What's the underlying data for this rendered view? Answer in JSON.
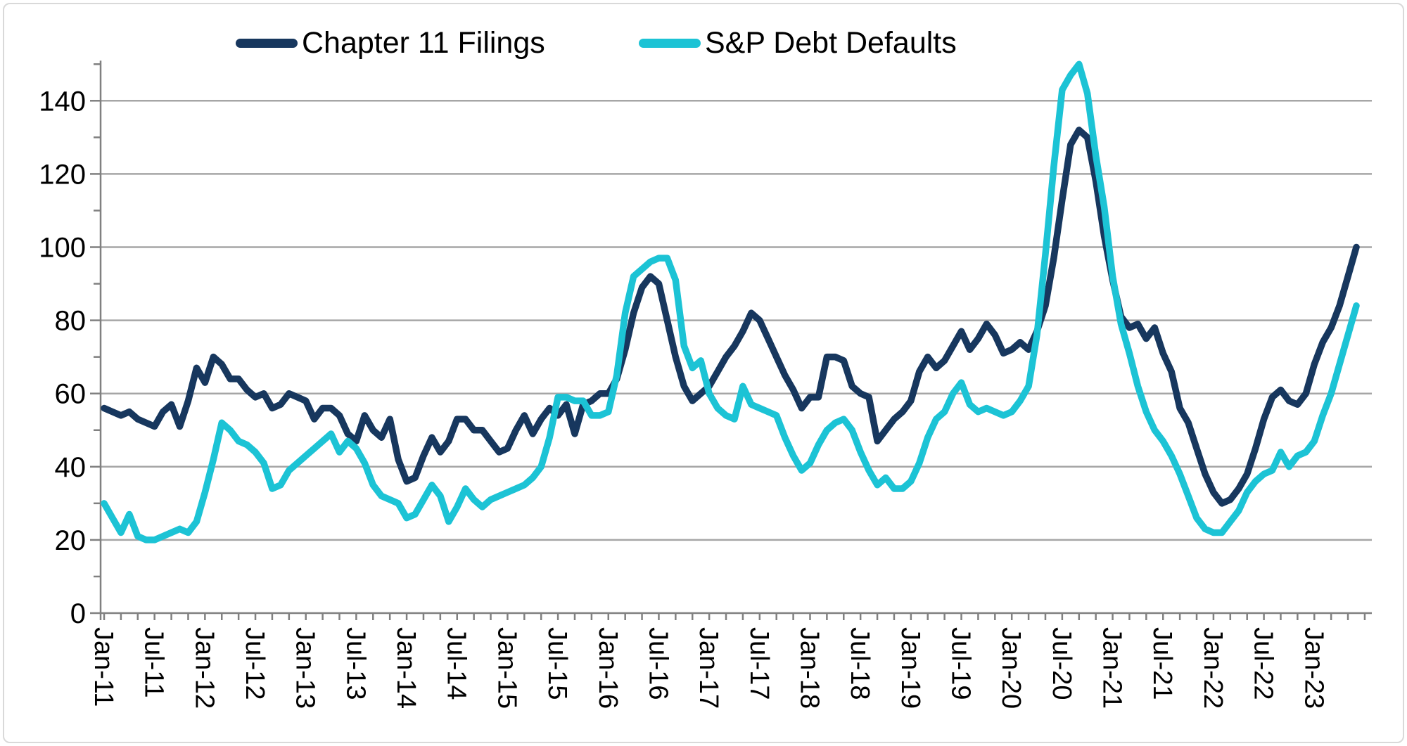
{
  "chart": {
    "legend": {
      "items": [
        {
          "label": "Chapter 11 Filings",
          "color": "#17375E"
        },
        {
          "label": "S&P Debt Defaults",
          "color": "#1CC3D5"
        }
      ]
    },
    "colors": {
      "series1": "#17375E",
      "series2": "#1CC3D5",
      "gridline": "#A6A6A6",
      "axis": "#808080",
      "text": "#000000",
      "frame_border": "#D9D9D9",
      "background": "#FFFFFF"
    }
  },
  "chart_data": {
    "type": "line",
    "title": "",
    "xlabel": "",
    "ylabel": "",
    "x_start": "Jan-11",
    "x_end": "Jun-23",
    "x_freq": "monthly",
    "n_points": 150,
    "ylim": [
      0,
      155
    ],
    "y_ticks": [
      0,
      20,
      40,
      60,
      80,
      100,
      120,
      140
    ],
    "y_minor_tick_step": 10,
    "x_minor_tick_months": 2,
    "grid": "horizontal",
    "legend_position": "top",
    "x_tick_labels": [
      "Jan-11",
      "Jul-11",
      "Jan-12",
      "Jul-12",
      "Jan-13",
      "Jul-13",
      "Jan-14",
      "Jul-14",
      "Jan-15",
      "Jul-15",
      "Jan-16",
      "Jul-16",
      "Jan-17",
      "Jul-17",
      "Jan-18",
      "Jul-18",
      "Jan-19",
      "Jul-19",
      "Jan-20",
      "Jul-20",
      "Jan-21",
      "Jul-21",
      "Jan-22",
      "Jul-22",
      "Jan-23"
    ],
    "series": [
      {
        "name": "Chapter 11 Filings",
        "color": "#17375E",
        "values": [
          56,
          55,
          54,
          55,
          53,
          52,
          51,
          55,
          57,
          51,
          58,
          67,
          63,
          70,
          68,
          64,
          64,
          61,
          59,
          60,
          56,
          57,
          60,
          59,
          58,
          53,
          56,
          56,
          54,
          49,
          47,
          54,
          50,
          48,
          53,
          42,
          36,
          37,
          43,
          48,
          44,
          47,
          53,
          53,
          50,
          50,
          47,
          44,
          45,
          50,
          54,
          49,
          53,
          56,
          54,
          57,
          49,
          57,
          58,
          60,
          60,
          64,
          72,
          82,
          89,
          92,
          90,
          80,
          70,
          62,
          58,
          60,
          62,
          66,
          70,
          73,
          77,
          82,
          80,
          75,
          70,
          65,
          61,
          56,
          59,
          59,
          70,
          70,
          69,
          62,
          60,
          59,
          47,
          50,
          53,
          55,
          58,
          66,
          70,
          67,
          69,
          73,
          77,
          72,
          75,
          79,
          76,
          71,
          72,
          74,
          72,
          77,
          84,
          97,
          113,
          128,
          132,
          130,
          118,
          103,
          91,
          81,
          78,
          79,
          75,
          78,
          71,
          66,
          56,
          52,
          45,
          38,
          33,
          30,
          31,
          34,
          38,
          45,
          53,
          59,
          61,
          58,
          57,
          60,
          68,
          74,
          78,
          84,
          92,
          100
        ]
      },
      {
        "name": "S&P Debt Defaults",
        "color": "#1CC3D5",
        "values": [
          30,
          26,
          22,
          27,
          21,
          20,
          20,
          21,
          22,
          23,
          22,
          25,
          33,
          42,
          52,
          50,
          47,
          46,
          44,
          41,
          34,
          35,
          39,
          41,
          43,
          45,
          47,
          49,
          44,
          47,
          45,
          41,
          35,
          32,
          31,
          30,
          26,
          27,
          31,
          35,
          32,
          25,
          29,
          34,
          31,
          29,
          31,
          32,
          33,
          34,
          35,
          37,
          40,
          48,
          59,
          59,
          58,
          58,
          54,
          54,
          55,
          65,
          82,
          92,
          94,
          96,
          97,
          97,
          91,
          73,
          67,
          69,
          60,
          56,
          54,
          53,
          62,
          57,
          56,
          55,
          54,
          48,
          43,
          39,
          41,
          46,
          50,
          52,
          53,
          50,
          44,
          39,
          35,
          37,
          34,
          34,
          36,
          41,
          48,
          53,
          55,
          60,
          63,
          57,
          55,
          56,
          55,
          54,
          55,
          58,
          62,
          76,
          98,
          122,
          143,
          147,
          150,
          142,
          125,
          111,
          92,
          79,
          71,
          62,
          55,
          50,
          47,
          43,
          38,
          32,
          26,
          23,
          22,
          22,
          25,
          28,
          33,
          36,
          38,
          39,
          44,
          40,
          43,
          44,
          47,
          54,
          60,
          68,
          76,
          84
        ]
      }
    ]
  }
}
